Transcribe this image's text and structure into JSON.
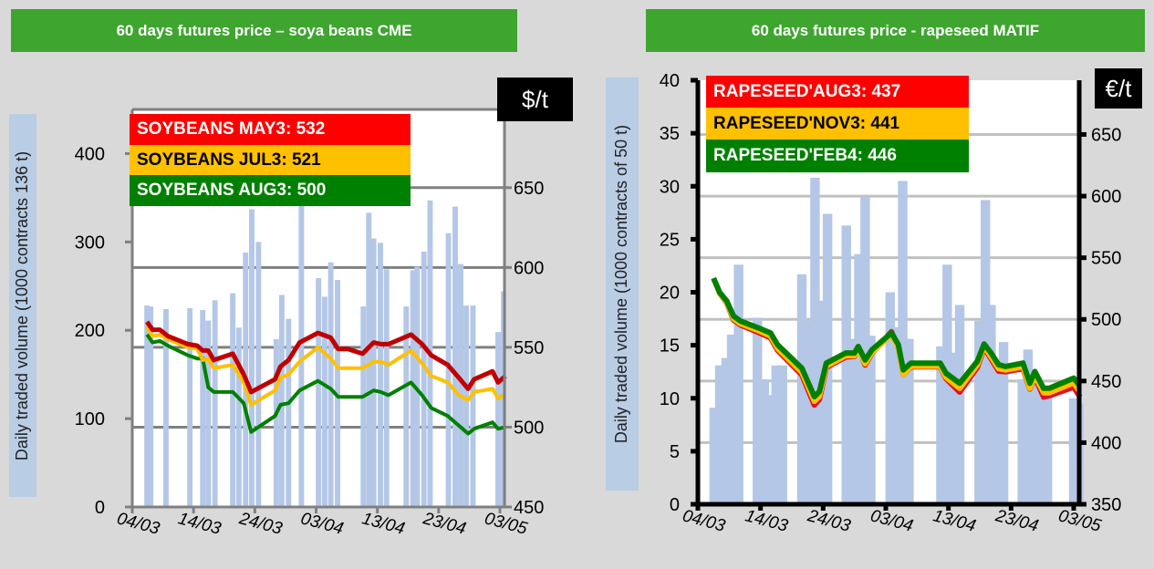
{
  "colors": {
    "banner": "#3ea52f",
    "red": "#ff0000",
    "red_line": "#c00000",
    "yellow": "#ffc000",
    "green": "#008000",
    "bars": "#b4c7e7"
  },
  "chart_data": [
    {
      "type": "bar+line",
      "title": "60 days futures price – soya beans CME",
      "ylabel": "Daily traded volume  (1000 contracts  136 t)",
      "y2label": "$/t",
      "ylim": [
        0,
        450
      ],
      "y2lim": [
        450,
        699
      ],
      "xlim": [
        0,
        61
      ],
      "yticks": [
        "0",
        "100",
        "200",
        "300",
        "400"
      ],
      "y2ticks": [
        "450",
        "500",
        "550",
        "600",
        "650"
      ],
      "xticks": [
        "04/03",
        "14/03",
        "24/03",
        "03/04",
        "13/04",
        "23/04",
        "03/05"
      ],
      "legend": [
        "SOYBEANS MAY3: 532",
        "SOYBEANS JUL3: 521",
        "SOYBEANS AUG3: 500"
      ],
      "bars": {
        "x": [
          2.4,
          3,
          5.5,
          9.4,
          11.5,
          12.4,
          13.5,
          16.4,
          17.4,
          18.5,
          19.5,
          20.6,
          23.5,
          24.4,
          25.5,
          27.6,
          30.4,
          31.4,
          32.4,
          33.5,
          37.7,
          38.6,
          39.4,
          40.5,
          41.5,
          44.7,
          45.8,
          46.5,
          47.6,
          48.6,
          51.6,
          52.7,
          53.6,
          54.5,
          55.6,
          59.7,
          60.6
        ],
        "values": [
          228,
          227,
          224,
          225,
          223,
          211,
          234,
          242,
          203,
          288,
          337,
          300,
          190,
          240,
          213,
          347,
          259,
          238,
          277,
          257,
          227,
          333,
          304,
          299,
          269,
          227,
          268,
          272,
          289,
          347,
          310,
          340,
          275,
          228,
          228,
          198,
          244
        ]
      },
      "x": [
        2.4,
        3.3,
        4.5,
        5.8,
        9.1,
        10.6,
        11.5,
        12.4,
        13.3,
        16.4,
        18.2,
        19.4,
        23.3,
        24.2,
        25.5,
        27.3,
        30.3,
        32.4,
        33.6,
        35.2,
        37.6,
        39.4,
        40.6,
        41.8,
        45.5,
        47.3,
        48.8,
        51.5,
        53.3,
        54.8,
        55.8,
        58.8,
        59.7,
        60.9
      ],
      "series": [
        {
          "name": "SOYBEANS MAY3",
          "values": [
            566,
            561,
            561,
            557,
            552,
            551,
            548,
            548,
            542,
            546,
            533,
            522,
            530,
            538,
            542,
            553,
            559,
            556,
            549,
            549,
            546,
            553,
            552,
            552,
            558,
            552,
            545,
            539,
            531,
            524,
            530,
            535,
            528,
            532
          ]
        },
        {
          "name": "SOYBEANS JUL3",
          "values": [
            563,
            557,
            558,
            555,
            550,
            549,
            542,
            543,
            537,
            539,
            528,
            514,
            523,
            531,
            533,
            541,
            550,
            543,
            537,
            537,
            537,
            541,
            541,
            539,
            548,
            540,
            532,
            528,
            520,
            517,
            522,
            524,
            518,
            521
          ]
        },
        {
          "name": "SOYBEANS AUG3",
          "values": [
            558,
            553,
            554,
            551,
            545,
            543,
            543,
            525,
            522,
            522,
            515,
            497,
            507,
            514,
            515,
            523,
            529,
            524,
            519,
            519,
            519,
            523,
            522,
            520,
            528,
            520,
            512,
            507,
            501,
            496,
            499,
            503,
            499,
            500
          ]
        }
      ]
    },
    {
      "type": "bar+line",
      "title": "60 days futures price - rapeseed MATIF",
      "ylabel": "Daily traded volume  (1000 contracts of 50 t)",
      "y2label": "€/t",
      "ylim": [
        0,
        40
      ],
      "y2lim": [
        350,
        694
      ],
      "xlim": [
        0,
        61
      ],
      "yticks": [
        "0",
        "5",
        "10",
        "15",
        "20",
        "25",
        "30",
        "35",
        "40"
      ],
      "y2ticks": [
        "350",
        "400",
        "450",
        "500",
        "550",
        "600",
        "650"
      ],
      "xticks": [
        "04/03",
        "14/03",
        "24/03",
        "03/04",
        "13/04",
        "23/04",
        "03/05"
      ],
      "legend": [
        "RAPESEED'AUG3: 437",
        "RAPESEED'NOV3: 441",
        "RAPESEED'FEB4: 446"
      ],
      "bars": {
        "x": [
          2.6,
          3.5,
          4.5,
          5.4,
          6.5,
          9.5,
          10.6,
          11.6,
          12.5,
          13.5,
          16.6,
          17.6,
          18.7,
          19.7,
          20.7,
          23.7,
          24.7,
          25.7,
          26.7,
          27.6,
          30.7,
          31.7,
          32.7,
          33.7,
          38.8,
          39.8,
          40.8,
          41.8,
          44.9,
          45.9,
          46.8,
          47.8,
          48.8,
          51.8,
          52.7,
          53.7,
          54.7,
          55.8,
          60,
          60.8
        ],
        "values": [
          9.1,
          13.1,
          13.8,
          16,
          22.6,
          17.6,
          11.8,
          10.3,
          13.1,
          13.1,
          21.7,
          17.3,
          30.8,
          19.2,
          27.4,
          26.3,
          15.6,
          23.6,
          29,
          15.9,
          20,
          16.7,
          30.5,
          15.6,
          14.9,
          22.6,
          14.3,
          18.8,
          17.3,
          28.7,
          18.8,
          12.5,
          15.3,
          11.8,
          14.6,
          11.4,
          11,
          11,
          10,
          9.5
        ]
      },
      "x": [
        2.5,
        3.5,
        4.6,
        5.7,
        6.8,
        9.6,
        11.6,
        12.7,
        16.6,
        18.6,
        19.4,
        20.5,
        23.6,
        25,
        25.6,
        26.7,
        27.8,
        30.9,
        32,
        32.8,
        34,
        38.7,
        39.6,
        41.8,
        44.6,
        45.7,
        46.8,
        48,
        49.1,
        51.9,
        53,
        53.8,
        55.2,
        56.1,
        60,
        61
      ],
      "series": [
        {
          "name": "RAPESEED'AUG3",
          "values": [
            533,
            521,
            513.5,
            499.5,
            495.5,
            489.5,
            485,
            475,
            455,
            430.5,
            435,
            461,
            469.5,
            470,
            477.5,
            463,
            472.5,
            490,
            477,
            455,
            461.5,
            461.5,
            452,
            441,
            461,
            477,
            468,
            458,
            457.5,
            460,
            443.5,
            453,
            437,
            438,
            445,
            437
          ]
        },
        {
          "name": "RAPESEED'NOV3",
          "values": [
            533,
            521,
            514,
            500.5,
            496.5,
            491,
            486.5,
            476.5,
            457,
            433.5,
            437.5,
            462,
            470.5,
            470.5,
            476,
            464,
            473,
            488,
            477,
            455,
            462,
            462,
            453,
            444,
            463,
            478,
            469.5,
            460,
            459,
            461.5,
            444,
            454,
            440.5,
            440.5,
            448.5,
            441
          ]
        },
        {
          "name": "RAPESEED'FEB4",
          "values": [
            533.5,
            521.8,
            515,
            502.7,
            498.6,
            493.2,
            489,
            479.5,
            460.4,
            437.3,
            441.4,
            464.5,
            472.7,
            472.7,
            478,
            467,
            475.4,
            489,
            479.5,
            459,
            464.5,
            464.5,
            456.4,
            448.2,
            465.9,
            480,
            472.7,
            463.2,
            461.8,
            464.5,
            448.2,
            457.7,
            444.1,
            444.1,
            452.3,
            446
          ]
        }
      ]
    }
  ]
}
